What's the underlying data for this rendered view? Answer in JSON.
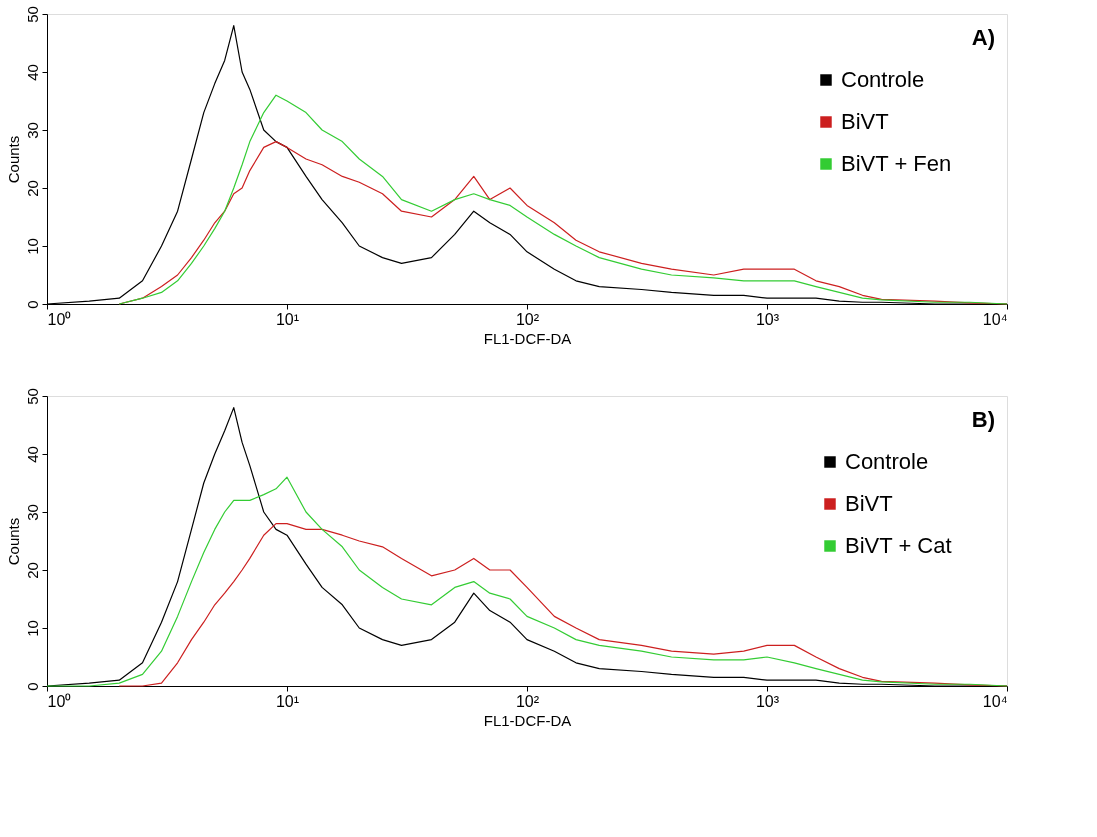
{
  "chart_data": [
    {
      "type": "line",
      "annotations": [
        "A)"
      ],
      "xlabel": "FL1-DCF-DA",
      "ylabel": "Counts",
      "log": "x",
      "legend": "top right",
      "xlim": [
        1,
        10000
      ],
      "xticks": [
        {
          "value": 1,
          "label": "10⁰"
        },
        {
          "value": 10,
          "label": "10¹"
        },
        {
          "value": 100,
          "label": "10²"
        },
        {
          "value": 1000,
          "label": "10³"
        },
        {
          "value": 10000,
          "label": "10⁴"
        }
      ],
      "ylim": [
        0,
        50
      ],
      "yticks": [
        0,
        10,
        20,
        30,
        40,
        50
      ],
      "x": [
        1,
        1.5,
        2,
        2.5,
        3,
        3.5,
        4,
        4.5,
        5,
        5.5,
        6,
        6.5,
        7,
        8,
        9,
        10,
        12,
        14,
        17,
        20,
        25,
        30,
        40,
        50,
        60,
        70,
        85,
        100,
        130,
        160,
        200,
        300,
        400,
        600,
        800,
        1000,
        1300,
        1600,
        2000,
        2500,
        3000,
        5000,
        7000,
        10000
      ],
      "series": [
        {
          "name": "Controle",
          "color": "#000000",
          "values": [
            0,
            0.5,
            1,
            4,
            10,
            16,
            25,
            33,
            38,
            42,
            48,
            40,
            37,
            30,
            28,
            27,
            22,
            18,
            14,
            10,
            8,
            7,
            8,
            12,
            16,
            14,
            12,
            9,
            6,
            4,
            3,
            2.5,
            2,
            1.5,
            1.5,
            1,
            1,
            1,
            0.5,
            0.3,
            0.3,
            0,
            0,
            0
          ]
        },
        {
          "name": "BiVT",
          "color": "#cc1f1f",
          "values": [
            null,
            null,
            0,
            1,
            3,
            5,
            8,
            11,
            14,
            16,
            19,
            20,
            23,
            27,
            28,
            27,
            25,
            24,
            22,
            21,
            19,
            16,
            15,
            18,
            22,
            18,
            20,
            17,
            14,
            11,
            9,
            7,
            6,
            5,
            6,
            6,
            6,
            4,
            3,
            1.5,
            0.8,
            0.5,
            0.2,
            0
          ]
        },
        {
          "name": "BiVT + Fen",
          "color": "#33cc33",
          "values": [
            null,
            null,
            0,
            1,
            2,
            4,
            7,
            10,
            13,
            16,
            20,
            24,
            28,
            33,
            36,
            35,
            33,
            30,
            28,
            25,
            22,
            18,
            16,
            18,
            19,
            18,
            17,
            15,
            12,
            10,
            8,
            6,
            5,
            4.5,
            4,
            4,
            4,
            3,
            2,
            1,
            0.7,
            0.3,
            0.3,
            0
          ]
        }
      ]
    },
    {
      "type": "line",
      "annotations": [
        "B)"
      ],
      "xlabel": "FL1-DCF-DA",
      "ylabel": "Counts",
      "log": "x",
      "legend": "top right",
      "xlim": [
        1,
        10000
      ],
      "xticks": [
        {
          "value": 1,
          "label": "10⁰"
        },
        {
          "value": 10,
          "label": "10¹"
        },
        {
          "value": 100,
          "label": "10²"
        },
        {
          "value": 1000,
          "label": "10³"
        },
        {
          "value": 10000,
          "label": "10⁴"
        }
      ],
      "ylim": [
        0,
        50
      ],
      "yticks": [
        0,
        10,
        20,
        30,
        40,
        50
      ],
      "x": [
        1,
        1.5,
        2,
        2.5,
        3,
        3.5,
        4,
        4.5,
        5,
        5.5,
        6,
        6.5,
        7,
        8,
        9,
        10,
        12,
        14,
        17,
        20,
        25,
        30,
        40,
        50,
        60,
        70,
        85,
        100,
        130,
        160,
        200,
        300,
        400,
        600,
        800,
        1000,
        1300,
        1600,
        2000,
        2500,
        3000,
        5000,
        7000,
        10000
      ],
      "series": [
        {
          "name": "Controle",
          "color": "#000000",
          "values": [
            0,
            0.5,
            1,
            4,
            11,
            18,
            27,
            35,
            40,
            44,
            48,
            42,
            38,
            30,
            27,
            26,
            21,
            17,
            14,
            10,
            8,
            7,
            8,
            11,
            16,
            13,
            11,
            8,
            6,
            4,
            3,
            2.5,
            2,
            1.5,
            1.5,
            1,
            1,
            1,
            0.5,
            0.3,
            0.3,
            0,
            0,
            0
          ]
        },
        {
          "name": "BiVT",
          "color": "#cc1f1f",
          "values": [
            null,
            null,
            0,
            0,
            0.5,
            4,
            8,
            11,
            14,
            16,
            18,
            20,
            22,
            26,
            28,
            28,
            27,
            27,
            26,
            25,
            24,
            22,
            19,
            20,
            22,
            20,
            20,
            17,
            12,
            10,
            8,
            7,
            6,
            5.5,
            6,
            7,
            7,
            5,
            3,
            1.5,
            0.8,
            0.5,
            0.2,
            0
          ]
        },
        {
          "name": "BiVT + Cat",
          "color": "#33cc33",
          "values": [
            0,
            0,
            0.5,
            2,
            6,
            12,
            18,
            23,
            27,
            30,
            32,
            32,
            32,
            33,
            34,
            36,
            30,
            27,
            24,
            20,
            17,
            15,
            14,
            17,
            18,
            16,
            15,
            12,
            10,
            8,
            7,
            6,
            5,
            4.5,
            4.5,
            5,
            4,
            3,
            2,
            1,
            0.7,
            0.3,
            0.3,
            0
          ]
        }
      ]
    }
  ]
}
